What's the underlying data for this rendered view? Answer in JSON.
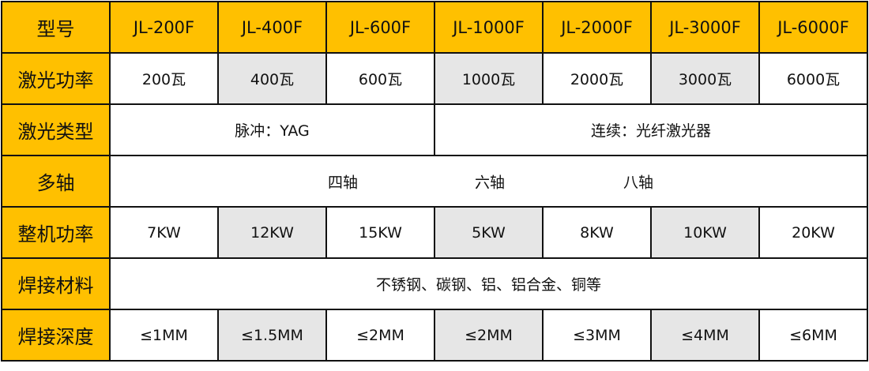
{
  "colors": {
    "header": "#FFC000",
    "alt_cell": "#e6e6e6"
  },
  "header": {
    "label": "型号",
    "models": [
      "JL-200F",
      "JL-400F",
      "JL-600F",
      "JL-1000F",
      "JL-2000F",
      "JL-3000F",
      "JL-6000F"
    ]
  },
  "laser_power": {
    "label": "激光功率",
    "values": [
      "200瓦",
      "400瓦",
      "600瓦",
      "1000瓦",
      "2000瓦",
      "3000瓦",
      "6000瓦"
    ]
  },
  "laser_type": {
    "label": "激光类型",
    "pulse": "脉冲：YAG",
    "continuous": "连续：光纤激光器"
  },
  "multi_axis": {
    "label": "多轴",
    "options": [
      "四轴",
      "六轴",
      "八轴"
    ]
  },
  "machine_power": {
    "label": "整机功率",
    "values": [
      "7KW",
      "12KW",
      "15KW",
      "5KW",
      "8KW",
      "10KW",
      "20KW"
    ]
  },
  "materials": {
    "label": "焊接材料",
    "value": "不锈钢、碳钢、铝、铝合金、铜等"
  },
  "depth": {
    "label": "焊接深度",
    "values": [
      "≤1MM",
      "≤1.5MM",
      "≤2MM",
      "≤2MM",
      "≤3MM",
      "≤4MM",
      "≤6MM"
    ]
  }
}
